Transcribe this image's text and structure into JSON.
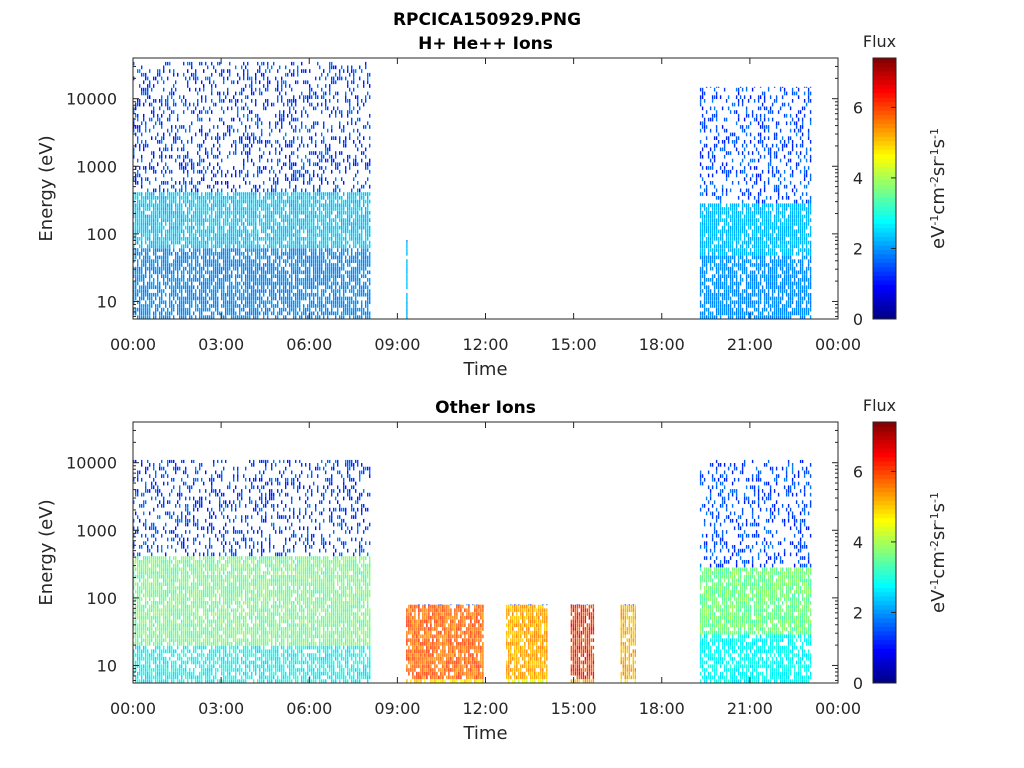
{
  "figure": {
    "title": "RPCICA150929.PNG"
  },
  "chart_data": [
    {
      "type": "heatmap",
      "title": "H+ He++ Ions",
      "xlabel": "Time",
      "ylabel": "Energy (eV)",
      "x_tick_labels": [
        "00:00",
        "03:00",
        "06:00",
        "09:00",
        "12:00",
        "15:00",
        "18:00",
        "21:00",
        "00:00"
      ],
      "xlim_hours": [
        0,
        24
      ],
      "y_scale": "log",
      "ylim": [
        5.5,
        40000
      ],
      "y_tick_labels": [
        "10",
        "100",
        "1000",
        "10000"
      ],
      "y_tick_values": [
        10,
        100,
        1000,
        10000
      ],
      "colorbar": {
        "label": "Flux",
        "unit_label": "eV-1cm-2sr-1s-1",
        "range": [
          0,
          7.4
        ],
        "ticks": [
          0,
          2,
          4,
          6
        ]
      },
      "data_intervals_hours": [
        {
          "start": 0.0,
          "end": 8.1,
          "upper_energy": 35000,
          "low_flux_floor": 1.8,
          "peak_flux": 2.6,
          "peak_energy_range": [
            60,
            400
          ]
        },
        {
          "start": 9.3,
          "end": 9.35,
          "upper_energy": 80,
          "low_flux_floor": 2.2,
          "peak_flux": 2.4,
          "peak_energy_range": [
            10,
            80
          ]
        },
        {
          "start": 19.3,
          "end": 23.1,
          "upper_energy": 15000,
          "low_flux_floor": 1.8,
          "peak_flux": 2.4,
          "peak_energy_range": [
            50,
            300
          ]
        }
      ]
    },
    {
      "type": "heatmap",
      "title": "Other Ions",
      "xlabel": "Time",
      "ylabel": "Energy (eV)",
      "x_tick_labels": [
        "00:00",
        "03:00",
        "06:00",
        "09:00",
        "12:00",
        "15:00",
        "18:00",
        "21:00",
        "00:00"
      ],
      "xlim_hours": [
        0,
        24
      ],
      "y_scale": "log",
      "ylim": [
        5.5,
        40000
      ],
      "y_tick_labels": [
        "10",
        "100",
        "1000",
        "10000"
      ],
      "y_tick_values": [
        10,
        100,
        1000,
        10000
      ],
      "colorbar": {
        "label": "Flux",
        "unit_label": "eV-1cm-2sr-1s-1",
        "range": [
          0,
          7.4
        ],
        "ticks": [
          0,
          2,
          4,
          6
        ]
      },
      "data_intervals_hours": [
        {
          "start": 0.0,
          "end": 8.1,
          "upper_energy": 11000,
          "low_flux_floor": 2.5,
          "peak_flux": 4.0,
          "peak_energy_range": [
            20,
            400
          ]
        },
        {
          "start": 9.3,
          "end": 11.9,
          "upper_energy": 80,
          "low_flux_floor": 4.5,
          "peak_flux": 6.2,
          "peak_energy_range": [
            6,
            80
          ]
        },
        {
          "start": 12.7,
          "end": 14.1,
          "upper_energy": 80,
          "low_flux_floor": 4.2,
          "peak_flux": 5.6,
          "peak_energy_range": [
            6,
            80
          ]
        },
        {
          "start": 14.9,
          "end": 15.7,
          "upper_energy": 80,
          "low_flux_floor": 4.8,
          "peak_flux": 6.5,
          "peak_energy_range": [
            6,
            80
          ]
        },
        {
          "start": 16.6,
          "end": 17.1,
          "upper_energy": 80,
          "low_flux_floor": 4.2,
          "peak_flux": 5.5,
          "peak_energy_range": [
            6,
            80
          ]
        },
        {
          "start": 19.3,
          "end": 23.1,
          "upper_energy": 11000,
          "low_flux_floor": 2.5,
          "peak_flux": 4.0,
          "peak_energy_range": [
            30,
            300
          ]
        }
      ]
    }
  ]
}
